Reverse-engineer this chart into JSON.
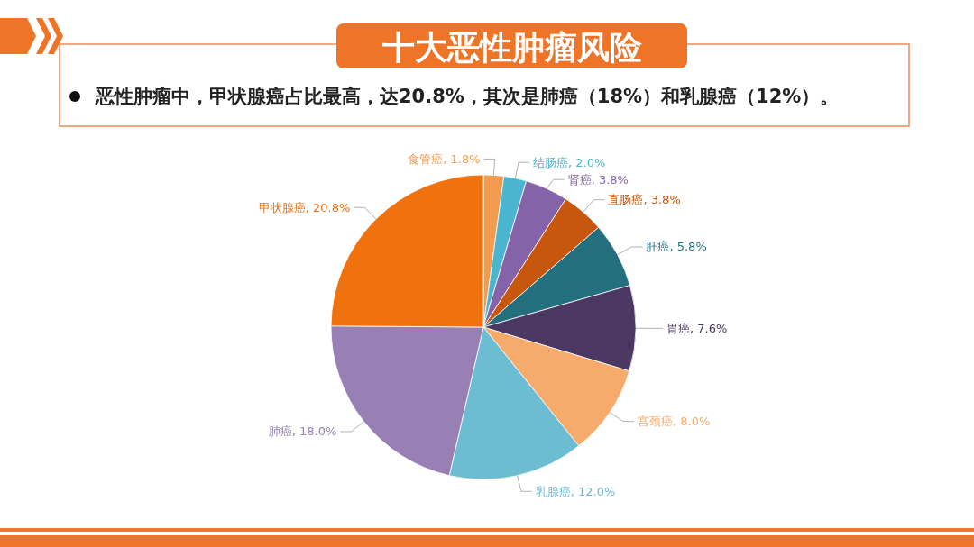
{
  "chart_data": {
    "type": "pie",
    "title": "十大恶性肿瘤风险",
    "subtitle": "恶性肿瘤中，甲状腺癌占比最高，达20.8%，其次是肺癌（18%）和乳腺癌（12%）。",
    "categories": [
      "食管癌",
      "结肠癌",
      "肾癌",
      "直肠癌",
      "肝癌",
      "胃癌",
      "宫颈癌",
      "乳腺癌",
      "肺癌",
      "甲状腺癌"
    ],
    "values": [
      1.8,
      2.0,
      3.8,
      3.8,
      5.8,
      7.6,
      8.0,
      12.0,
      18.0,
      20.8
    ],
    "colors": [
      "#f39c4f",
      "#4bb5cf",
      "#8463a8",
      "#c7570d",
      "#236f7e",
      "#4b3862",
      "#f6aa6c",
      "#6dbdd2",
      "#9880b5",
      "#f0720f"
    ],
    "value_labels": [
      "1.8%",
      "2.0%",
      "3.8%",
      "3.8%",
      "5.8%",
      "7.6%",
      "8.0%",
      "12.0%",
      "18.0%",
      "20.8%"
    ]
  }
}
